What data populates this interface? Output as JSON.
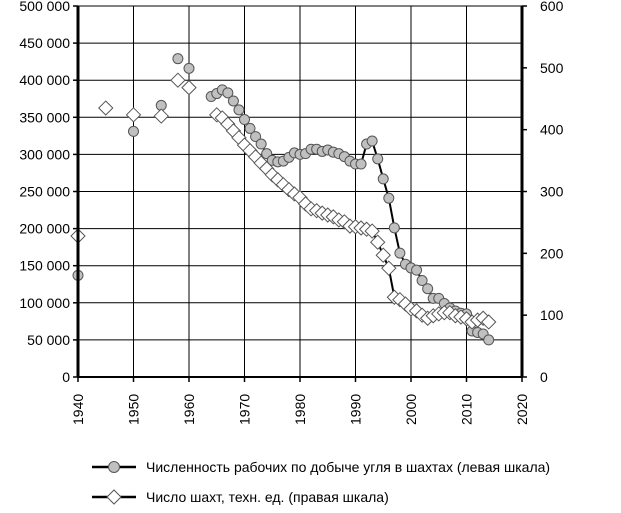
{
  "chart_data": {
    "type": "line",
    "title": "",
    "xlabel": "",
    "ylabel_left": "",
    "ylabel_right": "",
    "xlim": [
      1940,
      2020
    ],
    "ylim_left": [
      0,
      500000
    ],
    "ylim_right": [
      0,
      600
    ],
    "x_ticks": [
      "1940",
      "1950",
      "1960",
      "1970",
      "1980",
      "1990",
      "2000",
      "2010",
      "2020"
    ],
    "y_left_ticks": [
      "0",
      "50 000",
      "100 000",
      "150 000",
      "200 000",
      "250 000",
      "300 000",
      "350 000",
      "400 000",
      "450 000",
      "500 000"
    ],
    "y_right_ticks": [
      "0",
      "100",
      "200",
      "300",
      "400",
      "500",
      "600"
    ],
    "grid": true,
    "legend_position": "bottom",
    "series": [
      {
        "name": "Численность рабочих по добыче угля в шахтах (левая шкала)",
        "axis": "left",
        "marker": "circle",
        "color": "#c0c0c0",
        "x": [
          1940,
          1950,
          1955,
          1958,
          1960,
          1964,
          1965,
          1966,
          1967,
          1968,
          1969,
          1970,
          1971,
          1972,
          1973,
          1974,
          1975,
          1976,
          1977,
          1978,
          1979,
          1980,
          1981,
          1982,
          1983,
          1984,
          1985,
          1986,
          1987,
          1988,
          1989,
          1990,
          1991,
          1992,
          1993,
          1994,
          1995,
          1996,
          1997,
          1998,
          1999,
          2000,
          2001,
          2002,
          2003,
          2004,
          2005,
          2006,
          2007,
          2008,
          2009,
          2010,
          2011,
          2012,
          2013,
          2014
        ],
        "values": [
          137000,
          331000,
          366000,
          429000,
          416000,
          378000,
          382000,
          387000,
          383000,
          372000,
          360000,
          347000,
          335000,
          324000,
          314000,
          301000,
          292000,
          290000,
          291000,
          296000,
          302000,
          300000,
          301000,
          307000,
          307000,
          304000,
          306000,
          303000,
          301000,
          297000,
          291000,
          287000,
          287000,
          314000,
          318000,
          294000,
          267000,
          241000,
          201000,
          167000,
          152000,
          147000,
          144000,
          130000,
          119000,
          106000,
          106000,
          99000,
          93000,
          89000,
          86000,
          85000,
          62000,
          60000,
          58000,
          50000
        ]
      },
      {
        "name": "Число шахт, техн. ед. (правая шкала)",
        "axis": "right",
        "marker": "diamond",
        "color": "#ffffff",
        "x": [
          1940,
          1945,
          1950,
          1955,
          1958,
          1960,
          1965,
          1966,
          1967,
          1968,
          1969,
          1970,
          1971,
          1972,
          1973,
          1974,
          1975,
          1976,
          1977,
          1978,
          1979,
          1980,
          1981,
          1982,
          1983,
          1984,
          1985,
          1986,
          1987,
          1988,
          1989,
          1990,
          1991,
          1992,
          1993,
          1994,
          1995,
          1996,
          1997,
          1998,
          1999,
          2000,
          2001,
          2002,
          2003,
          2004,
          2005,
          2006,
          2007,
          2008,
          2009,
          2010,
          2011,
          2012,
          2013,
          2014
        ],
        "values": [
          228,
          435,
          424,
          422,
          480,
          468,
          424,
          419,
          409,
          398,
          387,
          375,
          366,
          356,
          346,
          337,
          327,
          319,
          311,
          303,
          296,
          290,
          280,
          272,
          269,
          265,
          262,
          259,
          254,
          251,
          244,
          243,
          241,
          239,
          236,
          218,
          197,
          176,
          129,
          125,
          118,
          110,
          107,
          100,
          95,
          99,
          102,
          104,
          104,
          99,
          97,
          94,
          89,
          92,
          95,
          89
        ]
      }
    ]
  }
}
